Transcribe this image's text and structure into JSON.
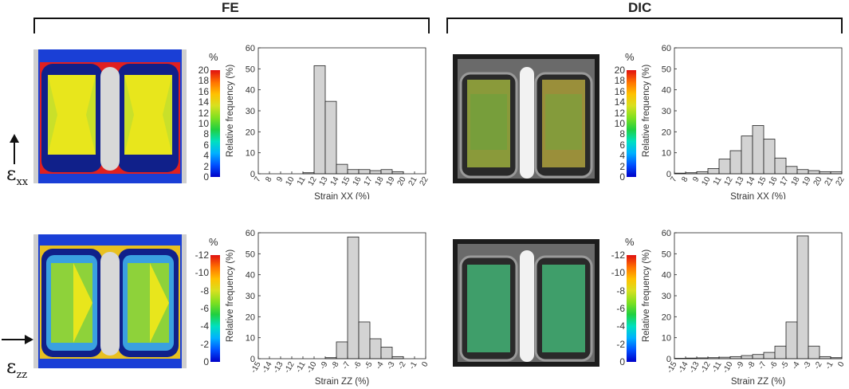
{
  "groups": [
    {
      "label": "FE"
    },
    {
      "label": "DIC"
    }
  ],
  "rows": [
    {
      "symbol": "ε",
      "subscript": "xx",
      "arrow": "up-arrow"
    },
    {
      "symbol": "ε",
      "subscript": "zz",
      "arrow": "right-arrow"
    }
  ],
  "colorbars": [
    {
      "unit": "%",
      "ticks": [
        "20",
        "18",
        "16",
        "14",
        "12",
        "10",
        "8",
        "6",
        "4",
        "2",
        "0"
      ]
    },
    {
      "unit": "%",
      "ticks": [
        "20",
        "18",
        "16",
        "14",
        "12",
        "10",
        "8",
        "6",
        "4",
        "2",
        "0"
      ]
    },
    {
      "unit": "%",
      "ticks": [
        "-12",
        "-10",
        "-8",
        "-6",
        "-4",
        "-2",
        "0"
      ]
    },
    {
      "unit": "%",
      "ticks": [
        "-12",
        "-10",
        "-8",
        "-6",
        "-4",
        "-2",
        "0"
      ]
    }
  ],
  "colors": {
    "bar_fill": "#d3d3d3",
    "bar_stroke": "#222222",
    "fe_background": "#1a3fd6",
    "fe_accent": "#e02020"
  },
  "chart_data": [
    {
      "type": "bar",
      "panel": "FE strain XX",
      "xlabel": "Strain XX (%)",
      "ylabel": "Relative frequency (%)",
      "xlim": [
        7,
        22
      ],
      "ylim": [
        0,
        60
      ],
      "x_ticks": [
        "7",
        "8",
        "9",
        "10",
        "11",
        "12",
        "13",
        "14",
        "15",
        "16",
        "17",
        "18",
        "19",
        "20",
        "21",
        "22"
      ],
      "y_ticks": [
        "0",
        "10",
        "20",
        "30",
        "40",
        "50",
        "60"
      ],
      "bin_edges": [
        7,
        8,
        9,
        10,
        11,
        12,
        13,
        14,
        15,
        16,
        17,
        18,
        19,
        20,
        21,
        22
      ],
      "values": [
        0,
        0,
        0,
        0,
        0.5,
        51.5,
        34.5,
        4.5,
        2,
        2,
        1.5,
        2,
        1,
        0,
        0
      ],
      "grid": false
    },
    {
      "type": "bar",
      "panel": "DIC strain XX",
      "xlabel": "Strain XX (%)",
      "ylabel": "Relative frequency (%)",
      "xlim": [
        7,
        22
      ],
      "ylim": [
        0,
        60
      ],
      "x_ticks": [
        "7",
        "8",
        "9",
        "10",
        "11",
        "12",
        "13",
        "14",
        "15",
        "16",
        "17",
        "18",
        "19",
        "20",
        "21",
        "22"
      ],
      "y_ticks": [
        "0",
        "10",
        "20",
        "30",
        "40",
        "50",
        "60"
      ],
      "bin_edges": [
        7,
        8,
        9,
        10,
        11,
        12,
        13,
        14,
        15,
        16,
        17,
        18,
        19,
        20,
        21,
        22
      ],
      "values": [
        0.3,
        0.5,
        1,
        2.5,
        7,
        11,
        18,
        23,
        16.5,
        7.5,
        3.5,
        2,
        1.5,
        1,
        1
      ],
      "grid": false
    },
    {
      "type": "bar",
      "panel": "FE strain ZZ",
      "xlabel": "Strain ZZ (%)",
      "ylabel": "Relative frequency (%)",
      "xlim": [
        -15,
        0
      ],
      "ylim": [
        0,
        60
      ],
      "x_ticks": [
        "-15",
        "-14",
        "-13",
        "-12",
        "-11",
        "-10",
        "-9",
        "-8",
        "-7",
        "-6",
        "-5",
        "-4",
        "-3",
        "-2",
        "-1",
        "0"
      ],
      "y_ticks": [
        "0",
        "10",
        "20",
        "30",
        "40",
        "50",
        "60"
      ],
      "bin_edges": [
        -15,
        -14,
        -13,
        -12,
        -11,
        -10,
        -9,
        -8,
        -7,
        -6,
        -5,
        -4,
        -3,
        -2,
        -1,
        0
      ],
      "values": [
        0,
        0,
        0,
        0,
        0,
        0,
        0.5,
        8,
        58,
        17.5,
        9.5,
        5.5,
        1,
        0,
        0
      ],
      "grid": false
    },
    {
      "type": "bar",
      "panel": "DIC strain ZZ",
      "xlabel": "Strain ZZ (%)",
      "ylabel": "Relative frequency (%)",
      "xlim": [
        -15,
        0
      ],
      "ylim": [
        0,
        60
      ],
      "x_ticks": [
        "-15",
        "-14",
        "-13",
        "-12",
        "-11",
        "-10",
        "-9",
        "-8",
        "-7",
        "-6",
        "-5",
        "-4",
        "-3",
        "-2",
        "-1",
        "0"
      ],
      "y_ticks": [
        "0",
        "10",
        "20",
        "30",
        "40",
        "50",
        "60"
      ],
      "bin_edges": [
        -15,
        -14,
        -13,
        -12,
        -11,
        -10,
        -9,
        -8,
        -7,
        -6,
        -5,
        -4,
        -3,
        -2,
        -1,
        0
      ],
      "values": [
        0.2,
        0.3,
        0.4,
        0.5,
        0.7,
        1,
        1.5,
        2,
        3,
        6,
        17.5,
        58.5,
        6,
        1,
        0.5
      ],
      "grid": false
    }
  ]
}
